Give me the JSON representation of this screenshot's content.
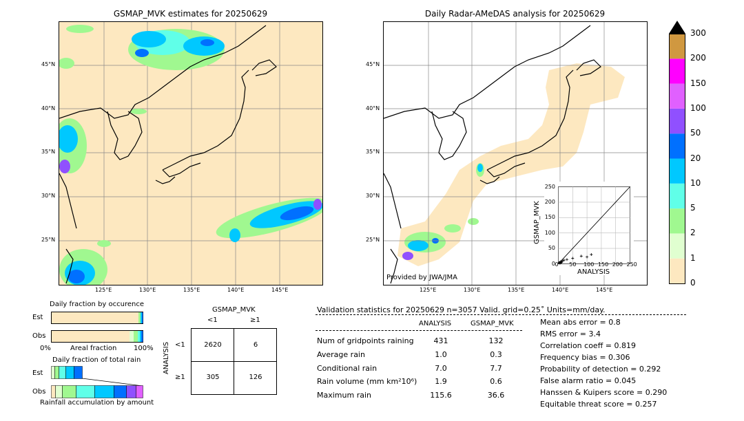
{
  "left_map": {
    "title": "GSMAP_MVK estimates for 20250629",
    "lat_labels": [
      "45°N",
      "40°N",
      "35°N",
      "30°N",
      "25°N"
    ],
    "lon_labels": [
      "125°E",
      "130°E",
      "135°E",
      "140°E",
      "145°E"
    ]
  },
  "right_map": {
    "title": "Daily Radar-AMeDAS analysis for 20250629",
    "lat_labels": [
      "45°N",
      "40°N",
      "35°N",
      "30°N",
      "25°N"
    ],
    "lon_labels": [
      "125°E",
      "130°E",
      "135°E",
      "140°E",
      "145°E"
    ],
    "credit": "Provided by JWA/JMA"
  },
  "colorbar": {
    "labels": [
      "0",
      "1",
      "2",
      "5",
      "10",
      "20",
      "50",
      "100",
      "150",
      "200",
      "300"
    ],
    "colors": [
      "#fde8c0",
      "#e0ffd0",
      "#a0f890",
      "#60ffe8",
      "#00c8ff",
      "#0070ff",
      "#9050ff",
      "#e060ff",
      "#ff00ff",
      "#d09840"
    ]
  },
  "scatter": {
    "xlabel": "ANALYSIS",
    "ylabel": "GSMAP_MVK",
    "ticks": [
      "0",
      "50",
      "100",
      "150",
      "200",
      "250"
    ]
  },
  "fraction_occurrence": {
    "title": "Daily fraction by occurence",
    "est_label": "Est",
    "obs_label": "Obs",
    "axis_left": "0%",
    "axis_mid": "Areal fraction",
    "axis_right": "100%"
  },
  "fraction_total": {
    "title": "Daily fraction of total rain",
    "est_label": "Est",
    "obs_label": "Obs",
    "footer": "Rainfall accumulation by amount"
  },
  "contingency": {
    "title": "GSMAP_MVK",
    "col_lt": "<1",
    "col_ge": "≥1",
    "row_lt": "<1",
    "row_ge": "≥1",
    "row_axis": "ANALYSIS",
    "cells": [
      "2620",
      "6",
      "305",
      "126"
    ]
  },
  "validation": {
    "header": "Validation statistics for 20250629  n=3057 Valid. grid=0.25˚ Units=mm/day.",
    "col_analysis": "ANALYSIS",
    "col_gsmap": "GSMAP_MVK",
    "rows": [
      {
        "label": "Num of gridpoints raining",
        "analysis": "431",
        "gsmap": "132"
      },
      {
        "label": "Average rain",
        "analysis": "1.0",
        "gsmap": "0.3"
      },
      {
        "label": "Conditional rain",
        "analysis": "7.0",
        "gsmap": "7.7"
      },
      {
        "label": "Rain volume (mm km²10⁶)",
        "analysis": "1.9",
        "gsmap": "0.6"
      },
      {
        "label": "Maximum rain",
        "analysis": "115.6",
        "gsmap": "36.6"
      }
    ],
    "scores": [
      "Mean abs error =    0.8",
      "RMS error =    3.4",
      "Correlation coeff =  0.819",
      "Frequency bias =  0.306",
      "Probability of detection =  0.292",
      "False alarm ratio =  0.045",
      "Hanssen & Kuipers score =  0.290",
      "Equitable threat score =  0.257"
    ]
  },
  "chart_data": {
    "type": "scatter",
    "title": "",
    "xlabel": "ANALYSIS",
    "ylabel": "GSMAP_MVK",
    "xlim": [
      0,
      250
    ],
    "ylim": [
      0,
      250
    ],
    "x": [
      2,
      4,
      6,
      8,
      10,
      12,
      15,
      20,
      30,
      50,
      80,
      100,
      115
    ],
    "y": [
      3,
      5,
      2,
      7,
      4,
      6,
      10,
      12,
      14,
      18,
      25,
      22,
      30
    ]
  }
}
